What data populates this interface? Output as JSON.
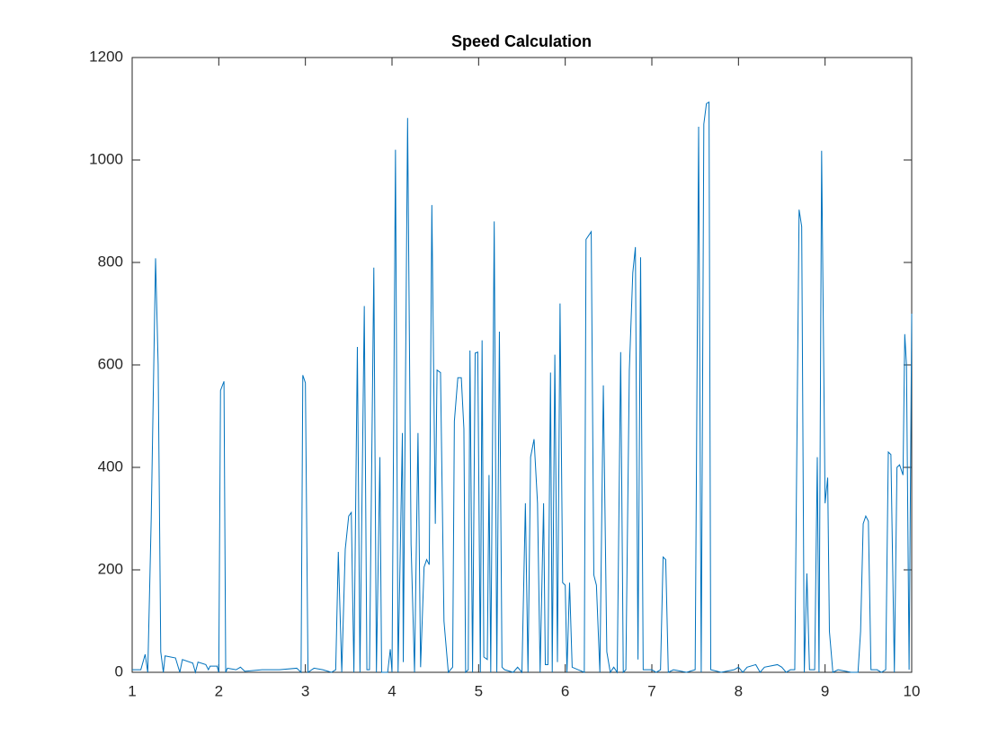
{
  "chart_data": {
    "type": "line",
    "title": "Speed Calculation",
    "x": [
      1.0,
      1.1,
      1.15,
      1.18,
      1.22,
      1.27,
      1.3,
      1.33,
      1.36,
      1.38,
      1.5,
      1.55,
      1.58,
      1.7,
      1.73,
      1.76,
      1.85,
      1.88,
      1.9,
      1.98,
      2.0,
      2.02,
      2.06,
      2.08,
      2.1,
      2.2,
      2.25,
      2.3,
      2.5,
      2.7,
      2.9,
      2.95,
      2.97,
      3.0,
      3.03,
      3.1,
      3.2,
      3.3,
      3.35,
      3.38,
      3.42,
      3.46,
      3.5,
      3.53,
      3.56,
      3.6,
      3.63,
      3.68,
      3.71,
      3.74,
      3.79,
      3.82,
      3.86,
      3.88,
      3.95,
      3.98,
      4.0,
      4.04,
      4.07,
      4.12,
      4.13,
      4.18,
      4.22,
      4.26,
      4.3,
      4.33,
      4.37,
      4.4,
      4.43,
      4.46,
      4.5,
      4.52,
      4.56,
      4.6,
      4.65,
      4.7,
      4.72,
      4.76,
      4.8,
      4.83,
      4.85,
      4.88,
      4.9,
      4.93,
      4.96,
      4.99,
      5.02,
      5.04,
      5.06,
      5.1,
      5.12,
      5.14,
      5.18,
      5.21,
      5.24,
      5.27,
      5.3,
      5.4,
      5.45,
      5.5,
      5.54,
      5.57,
      5.6,
      5.64,
      5.68,
      5.71,
      5.75,
      5.77,
      5.8,
      5.83,
      5.85,
      5.88,
      5.91,
      5.94,
      5.97,
      6.0,
      6.02,
      6.05,
      6.08,
      6.15,
      6.22,
      6.24,
      6.3,
      6.33,
      6.36,
      6.4,
      6.44,
      6.48,
      6.52,
      6.56,
      6.6,
      6.64,
      6.67,
      6.7,
      6.74,
      6.78,
      6.81,
      6.84,
      6.87,
      6.9,
      7.0,
      7.05,
      7.1,
      7.13,
      7.16,
      7.19,
      7.25,
      7.4,
      7.5,
      7.54,
      7.57,
      7.6,
      7.63,
      7.66,
      7.68,
      7.8,
      7.95,
      8.0,
      8.05,
      8.1,
      8.2,
      8.25,
      8.3,
      8.45,
      8.5,
      8.55,
      8.6,
      8.65,
      8.7,
      8.73,
      8.76,
      8.79,
      8.82,
      8.88,
      8.91,
      8.93,
      8.96,
      9.0,
      9.03,
      9.05,
      9.09,
      9.15,
      9.3,
      9.38,
      9.41,
      9.44,
      9.47,
      9.5,
      9.53,
      9.6,
      9.65,
      9.7,
      9.73,
      9.76,
      9.8,
      9.83,
      9.86,
      9.9,
      9.92,
      9.94,
      9.97,
      10.0
    ],
    "series": [
      {
        "color": "#0072bd",
        "values": [
          5,
          5,
          35,
          0,
          300,
          808,
          600,
          40,
          0,
          32,
          28,
          0,
          25,
          18,
          0,
          20,
          15,
          5,
          12,
          12,
          0,
          550,
          568,
          0,
          8,
          5,
          10,
          2,
          5,
          5,
          8,
          0,
          580,
          565,
          0,
          8,
          5,
          0,
          5,
          235,
          0,
          240,
          305,
          312,
          0,
          635,
          0,
          715,
          5,
          5,
          790,
          0,
          420,
          0,
          0,
          45,
          0,
          1020,
          0,
          467,
          20,
          1082,
          250,
          0,
          467,
          10,
          205,
          220,
          210,
          912,
          290,
          590,
          585,
          100,
          0,
          10,
          490,
          575,
          575,
          475,
          0,
          5,
          628,
          0,
          623,
          625,
          0,
          648,
          30,
          25,
          385,
          0,
          880,
          0,
          665,
          10,
          5,
          0,
          10,
          0,
          330,
          0,
          420,
          455,
          330,
          0,
          330,
          15,
          15,
          585,
          0,
          620,
          20,
          720,
          175,
          170,
          0,
          175,
          10,
          5,
          0,
          845,
          860,
          190,
          170,
          0,
          560,
          40,
          0,
          10,
          0,
          625,
          0,
          5,
          590,
          780,
          830,
          25,
          810,
          5,
          5,
          0,
          5,
          225,
          220,
          0,
          5,
          0,
          5,
          1065,
          0,
          1070,
          1110,
          1113,
          5,
          0,
          5,
          10,
          0,
          10,
          15,
          0,
          10,
          15,
          10,
          0,
          5,
          5,
          903,
          870,
          0,
          193,
          5,
          5,
          420,
          0,
          1018,
          330,
          380,
          80,
          0,
          5,
          0,
          0,
          80,
          290,
          305,
          295,
          5,
          5,
          0,
          5,
          430,
          425,
          0,
          400,
          405,
          385,
          660,
          600,
          5,
          700
        ]
      }
    ],
    "xlim": [
      1,
      10
    ],
    "xticks": [
      1,
      2,
      3,
      4,
      5,
      6,
      7,
      8,
      9,
      10
    ],
    "ylim": [
      0,
      1200
    ],
    "yticks": [
      0,
      200,
      400,
      600,
      800,
      1000,
      1200
    ],
    "grid": false
  }
}
